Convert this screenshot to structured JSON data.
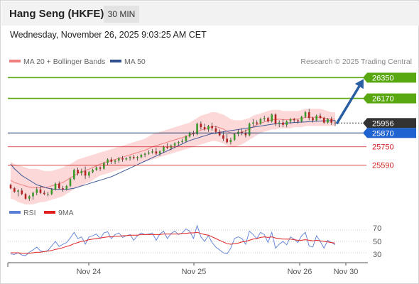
{
  "header": {
    "title": "Hang Seng (HKFE)",
    "timeframe": "30 MIN"
  },
  "datetime": "Wednesday, November 26, 2025 9:03:25 AM CET",
  "legend": {
    "items": [
      {
        "label": "MA 20 + Bollinger Bands",
        "color": "#f08080"
      },
      {
        "label": "MA 50",
        "color": "#2f4f8f"
      }
    ],
    "credit": "Research © 2025 Trading Central"
  },
  "colors": {
    "up": "#3a9a2a",
    "down": "#b52020",
    "band": "#fdd8d8",
    "ma20": "#f08080",
    "ma50": "#3d5a99",
    "resistance": "#5aa811",
    "support": "#d02020",
    "pivot": "#1f3a6e",
    "last": "#333333",
    "arrow": "#2b5fa3",
    "rsi": "#5b7fd6",
    "rsi_ma": "#e02020"
  },
  "levels": [
    {
      "label": "26350",
      "type": "resistance",
      "value": 26350
    },
    {
      "label": "26170",
      "type": "resistance",
      "value": 26170
    },
    {
      "label": "25956",
      "type": "last",
      "value": 25956
    },
    {
      "label": "25870",
      "type": "pivot",
      "value": 25870
    },
    {
      "label": "25750",
      "type": "support",
      "value": 25750
    },
    {
      "label": "25590",
      "type": "support",
      "value": 25590
    }
  ],
  "rsi_legend": [
    {
      "label": "RSI",
      "color": "#5b7fd6"
    },
    {
      "label": "9MA",
      "color": "#e02020"
    }
  ],
  "rsi_ticks": [
    "70",
    "50",
    "30"
  ],
  "x_labels": [
    "Nov 24",
    "Nov 25",
    "Nov 26",
    "Nov 30"
  ],
  "chart_data": {
    "type": "candlestick",
    "price_range": [
      25280,
      26420
    ],
    "candles": [
      [
        25420,
        25430,
        25380,
        25390
      ],
      [
        25390,
        25400,
        25350,
        25360
      ],
      [
        25360,
        25380,
        25320,
        25370
      ],
      [
        25370,
        25390,
        25330,
        25340
      ],
      [
        25340,
        25350,
        25290,
        25300
      ],
      [
        25300,
        25330,
        25280,
        25320
      ],
      [
        25320,
        25360,
        25290,
        25350
      ],
      [
        25350,
        25400,
        25330,
        25380
      ],
      [
        25380,
        25410,
        25340,
        25350
      ],
      [
        25350,
        25370,
        25330,
        25340
      ],
      [
        25340,
        25360,
        25320,
        25340
      ],
      [
        25340,
        25390,
        25330,
        25380
      ],
      [
        25380,
        25440,
        25370,
        25430
      ],
      [
        25430,
        25450,
        25380,
        25390
      ],
      [
        25390,
        25410,
        25360,
        25380
      ],
      [
        25380,
        25420,
        25370,
        25410
      ],
      [
        25410,
        25480,
        25400,
        25470
      ],
      [
        25470,
        25560,
        25460,
        25550
      ],
      [
        25550,
        25570,
        25500,
        25520
      ],
      [
        25520,
        25560,
        25500,
        25540
      ],
      [
        25540,
        25580,
        25470,
        25500
      ],
      [
        25500,
        25540,
        25480,
        25530
      ],
      [
        25530,
        25560,
        25520,
        25550
      ],
      [
        25550,
        25580,
        25540,
        25570
      ],
      [
        25570,
        25580,
        25540,
        25560
      ],
      [
        25560,
        25620,
        25550,
        25610
      ],
      [
        25610,
        25650,
        25590,
        25640
      ],
      [
        25640,
        25660,
        25600,
        25620
      ],
      [
        25620,
        25640,
        25600,
        25630
      ],
      [
        25630,
        25660,
        25610,
        25650
      ],
      [
        25650,
        25670,
        25620,
        25640
      ],
      [
        25640,
        25660,
        25630,
        25650
      ],
      [
        25650,
        25670,
        25630,
        25660
      ],
      [
        25660,
        25680,
        25640,
        25650
      ],
      [
        25650,
        25670,
        25630,
        25660
      ],
      [
        25660,
        25690,
        25650,
        25680
      ],
      [
        25680,
        25700,
        25660,
        25690
      ],
      [
        25690,
        25720,
        25680,
        25700
      ],
      [
        25700,
        25730,
        25690,
        25710
      ],
      [
        25710,
        25740,
        25680,
        25690
      ],
      [
        25690,
        25720,
        25670,
        25710
      ],
      [
        25710,
        25760,
        25700,
        25750
      ],
      [
        25750,
        25780,
        25730,
        25740
      ],
      [
        25740,
        25770,
        25720,
        25760
      ],
      [
        25760,
        25790,
        25740,
        25780
      ],
      [
        25780,
        25800,
        25760,
        25790
      ],
      [
        25790,
        25820,
        25780,
        25800
      ],
      [
        25800,
        25850,
        25790,
        25840
      ],
      [
        25840,
        25880,
        25830,
        25870
      ],
      [
        25870,
        25890,
        25840,
        25860
      ],
      [
        25860,
        25960,
        25850,
        25950
      ],
      [
        25950,
        25970,
        25900,
        25920
      ],
      [
        25920,
        25950,
        25890,
        25900
      ],
      [
        25900,
        25940,
        25880,
        25930
      ],
      [
        25930,
        25960,
        25890,
        25910
      ],
      [
        25910,
        25930,
        25860,
        25880
      ],
      [
        25880,
        25900,
        25840,
        25850
      ],
      [
        25850,
        25880,
        25800,
        25820
      ],
      [
        25820,
        25860,
        25780,
        25790
      ],
      [
        25790,
        25830,
        25770,
        25810
      ],
      [
        25810,
        25870,
        25800,
        25860
      ],
      [
        25860,
        25900,
        25840,
        25880
      ],
      [
        25880,
        25910,
        25850,
        25870
      ],
      [
        25870,
        25900,
        25830,
        25850
      ],
      [
        25850,
        25960,
        25840,
        25950
      ],
      [
        25950,
        25990,
        25930,
        25960
      ],
      [
        25960,
        25980,
        25940,
        25950
      ],
      [
        25950,
        26000,
        25940,
        25990
      ],
      [
        25990,
        26020,
        25970,
        26000
      ],
      [
        26000,
        26010,
        25960,
        25970
      ],
      [
        25970,
        26040,
        25960,
        26030
      ],
      [
        26030,
        26040,
        25930,
        25950
      ],
      [
        25950,
        25980,
        25920,
        25960
      ],
      [
        25960,
        25990,
        25920,
        25940
      ],
      [
        25940,
        25980,
        25920,
        25970
      ],
      [
        25970,
        26000,
        25950,
        25990
      ],
      [
        25990,
        26000,
        25960,
        25980
      ],
      [
        25980,
        25990,
        25950,
        25970
      ],
      [
        25970,
        26020,
        25960,
        26010
      ],
      [
        26010,
        26060,
        26000,
        26050
      ],
      [
        26050,
        26080,
        25980,
        26000
      ],
      [
        26000,
        26010,
        25960,
        25980
      ],
      [
        25980,
        26030,
        25970,
        26020
      ],
      [
        26020,
        26040,
        25990,
        26000
      ],
      [
        26000,
        26010,
        25950,
        25960
      ],
      [
        25960,
        26000,
        25950,
        25990
      ],
      [
        25990,
        26010,
        25940,
        25960
      ],
      [
        25960,
        25980,
        25930,
        25956
      ]
    ],
    "bb_upper": [
      25620,
      25600,
      25590,
      25580,
      25570,
      25560,
      25560,
      25560,
      25550,
      25540,
      25540,
      25540,
      25550,
      25560,
      25570,
      25590,
      25600,
      25620,
      25640,
      25650,
      25660,
      25670,
      25680,
      25690,
      25700,
      25710,
      25720,
      25730,
      25740,
      25750,
      25760,
      25770,
      25780,
      25790,
      25800,
      25810,
      25820,
      25840,
      25860,
      25870,
      25880,
      25890,
      25900,
      25910,
      25920,
      25930,
      25940,
      25950,
      25960,
      25980,
      26000,
      26020,
      26030,
      26040,
      26050,
      26050,
      26040,
      26030,
      26010,
      25990,
      25980,
      25980,
      25980,
      25990,
      26000,
      26020,
      26030,
      26040,
      26050,
      26060,
      26070,
      26070,
      26070,
      26060,
      26060,
      26060,
      26060,
      26060,
      26070,
      26080,
      26080,
      26080,
      26080,
      26080,
      26070,
      26060,
      26050,
      26050
    ],
    "bb_lower": [
      25300,
      25290,
      25270,
      25260,
      25250,
      25250,
      25250,
      25260,
      25270,
      25270,
      25280,
      25290,
      25300,
      25310,
      25320,
      25340,
      25360,
      25380,
      25400,
      25410,
      25430,
      25440,
      25460,
      25480,
      25500,
      25510,
      25520,
      25530,
      25540,
      25550,
      25560,
      25570,
      25580,
      25590,
      25600,
      25610,
      25620,
      25630,
      25640,
      25650,
      25660,
      25670,
      25680,
      25690,
      25700,
      25710,
      25720,
      25730,
      25740,
      25750,
      25760,
      25770,
      25780,
      25790,
      25800,
      25800,
      25790,
      25780,
      25760,
      25750,
      25750,
      25760,
      25770,
      25790,
      25810,
      25830,
      25850,
      25870,
      25880,
      25890,
      25900,
      25900,
      25910,
      25910,
      25910,
      25910,
      25920,
      25920,
      25920,
      25930,
      25930,
      25930,
      25930,
      25930,
      25930,
      25930,
      25930,
      25930
    ],
    "ma20": [
      25460,
      25440,
      25430,
      25420,
      25410,
      25400,
      25395,
      25395,
      25395,
      25395,
      25400,
      25410,
      25420,
      25430,
      25440,
      25460,
      25480,
      25500,
      25520,
      25530,
      25545,
      25555,
      25570,
      25585,
      25600,
      25610,
      25620,
      25630,
      25640,
      25650,
      25660,
      25670,
      25680,
      25690,
      25700,
      25710,
      25720,
      25735,
      25750,
      25760,
      25770,
      25780,
      25790,
      25800,
      25810,
      25820,
      25830,
      25840,
      25850,
      25865,
      25880,
      25895,
      25905,
      25915,
      25925,
      25925,
      25915,
      25905,
      25885,
      25870,
      25865,
      25870,
      25875,
      25890,
      25905,
      25925,
      25940,
      25955,
      25965,
      25975,
      25985,
      25985,
      25990,
      25985,
      25985,
      25985,
      25990,
      25990,
      25995,
      26005,
      26005,
      26005,
      26005,
      26005,
      26000,
      25995,
      25990,
      25990
    ],
    "ma50": [
      25600,
      25560,
      25530,
      25500,
      25480,
      25460,
      25440,
      25420,
      25410,
      25400,
      25390,
      25385,
      25380,
      25380,
      25380,
      25380,
      25385,
      25390,
      25400,
      25410,
      25420,
      25430,
      25440,
      25450,
      25460,
      25470,
      25480,
      25490,
      25505,
      25520,
      25535,
      25550,
      25565,
      25580,
      25595,
      25610,
      25625,
      25640,
      25655,
      25670,
      25685,
      25700,
      25715,
      25730,
      25745,
      25760,
      25775,
      25790,
      25805,
      25815,
      25825,
      25835,
      25845,
      25855,
      25865,
      25870,
      25875,
      25880,
      25885,
      25890,
      25895,
      25900,
      25905,
      25910,
      25915,
      25920,
      25925,
      25930,
      25935,
      25940,
      25945,
      25950,
      25952,
      25954,
      25956,
      25958,
      25960,
      25962,
      25964,
      25966,
      25968,
      25970,
      25972,
      25974,
      25975,
      25976,
      25977,
      25978
    ],
    "forecast_arrow": {
      "from": 25956,
      "to": 26350
    },
    "rsi_range": [
      15,
      85
    ],
    "rsi": [
      28,
      27,
      30,
      26,
      25,
      31,
      35,
      40,
      33,
      32,
      34,
      42,
      50,
      41,
      45,
      48,
      56,
      66,
      55,
      58,
      45,
      58,
      60,
      63,
      55,
      65,
      67,
      55,
      62,
      65,
      57,
      60,
      62,
      52,
      60,
      65,
      62,
      63,
      65,
      52,
      63,
      68,
      55,
      64,
      68,
      62,
      65,
      72,
      68,
      55,
      78,
      58,
      50,
      60,
      48,
      40,
      35,
      30,
      28,
      38,
      55,
      58,
      55,
      45,
      68,
      62,
      55,
      66,
      62,
      48,
      66,
      38,
      45,
      50,
      44,
      58,
      54,
      48,
      60,
      66,
      42,
      40,
      60,
      50,
      38,
      52,
      48,
      44
    ],
    "rsi_ma": [
      30,
      30,
      30,
      29,
      29,
      29,
      30,
      31,
      31,
      32,
      33,
      34,
      36,
      37,
      39,
      41,
      43,
      46,
      48,
      50,
      51,
      53,
      54,
      55,
      56,
      57,
      58,
      58,
      59,
      59,
      60,
      60,
      61,
      61,
      61,
      62,
      62,
      62,
      62,
      62,
      62,
      63,
      63,
      63,
      63,
      63,
      64,
      64,
      65,
      65,
      66,
      64,
      62,
      61,
      58,
      55,
      52,
      49,
      46,
      45,
      46,
      47,
      49,
      50,
      52,
      54,
      55,
      57,
      58,
      57,
      58,
      56,
      55,
      54,
      54,
      54,
      53,
      52,
      52,
      53,
      52,
      51,
      52,
      51,
      50,
      49,
      48,
      47
    ]
  }
}
